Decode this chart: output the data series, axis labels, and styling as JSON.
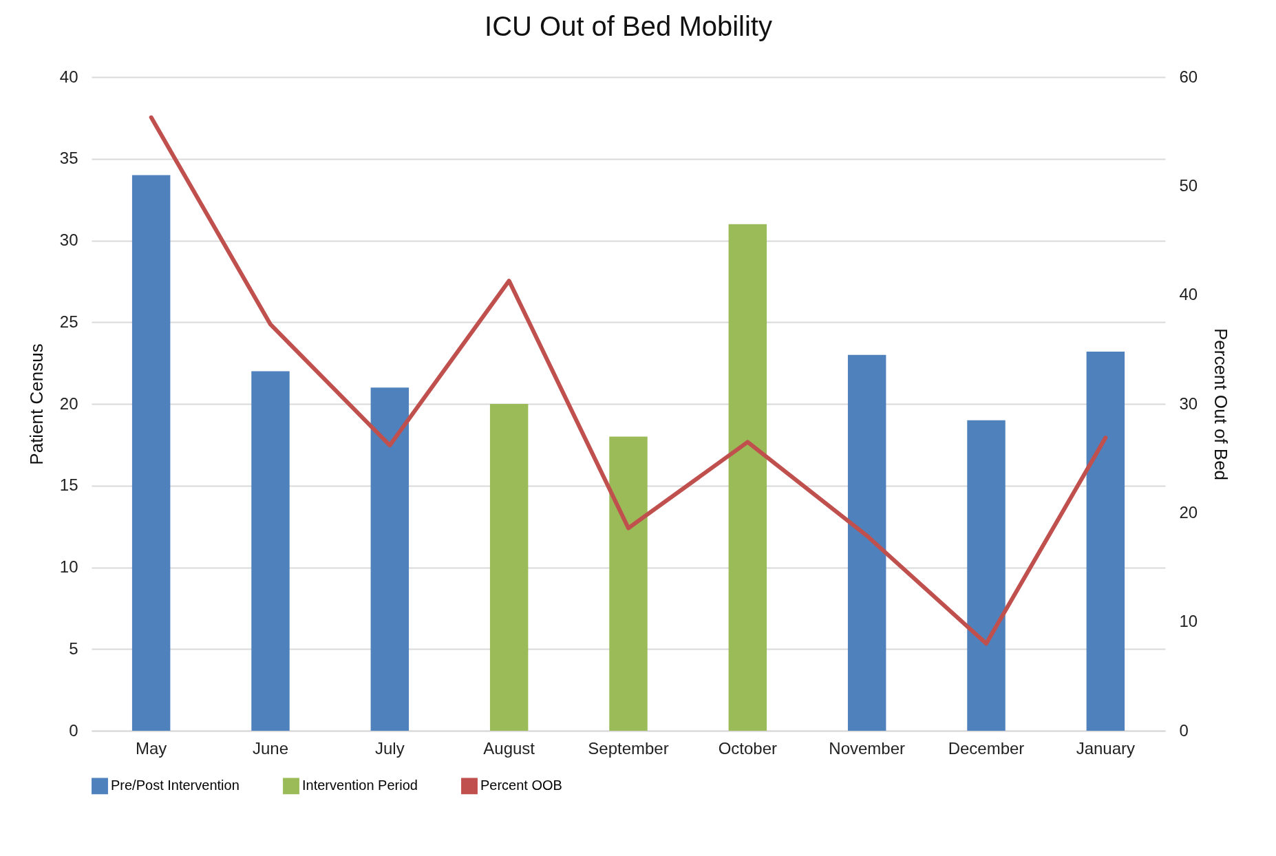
{
  "chart_data": {
    "type": "bar",
    "title": "ICU Out of Bed Mobility",
    "ylabel": "Patient Census",
    "y2label": "Percent Out of Bed",
    "categories": [
      "May",
      "June",
      "July",
      "August",
      "September",
      "October",
      "November",
      "December",
      "January"
    ],
    "series": [
      {
        "name": "Pre/Post Intervention",
        "color": "#4f81bd",
        "values": [
          34,
          22,
          21,
          null,
          null,
          null,
          23,
          19,
          23.2
        ]
      },
      {
        "name": "Intervention Period",
        "color": "#9bbb59",
        "values": [
          null,
          null,
          null,
          20,
          18,
          31,
          null,
          null,
          null
        ]
      },
      {
        "name": "Percent OOB",
        "type": "line",
        "axis": "y2",
        "color": "#c0504d",
        "line_style": "solid",
        "values": [
          56.3,
          37.3,
          26.2,
          41.3,
          18.6,
          26.5,
          17.9,
          8,
          26.9
        ]
      }
    ],
    "ylim": [
      0,
      40
    ],
    "yticks": [
      0,
      5,
      10,
      15,
      20,
      25,
      30,
      35,
      40
    ],
    "y2lim": [
      0,
      60
    ],
    "y2ticks": [
      0,
      10,
      20,
      30,
      40,
      50,
      60
    ],
    "grid": "y",
    "legend": "bottom"
  }
}
